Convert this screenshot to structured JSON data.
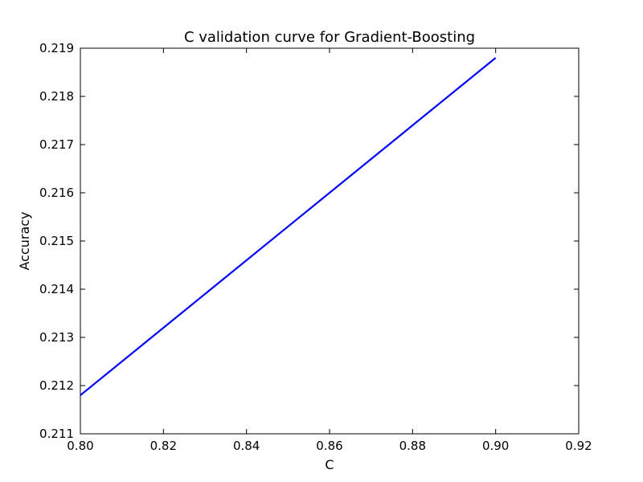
{
  "chart_data": {
    "type": "line",
    "title": "C validation curve for Gradient-Boosting",
    "xlabel": "C",
    "ylabel": "Accuracy",
    "xlim": [
      0.8,
      0.92
    ],
    "ylim": [
      0.211,
      0.219
    ],
    "xticks": [
      "0.80",
      "0.82",
      "0.84",
      "0.86",
      "0.88",
      "0.90",
      "0.92"
    ],
    "yticks": [
      "0.211",
      "0.212",
      "0.213",
      "0.214",
      "0.215",
      "0.216",
      "0.217",
      "0.218",
      "0.219"
    ],
    "grid": false,
    "legend": "none",
    "series": [
      {
        "color": "#0000ff",
        "x": [
          0.8,
          0.9
        ],
        "y": [
          0.2118,
          0.2188
        ]
      }
    ]
  }
}
